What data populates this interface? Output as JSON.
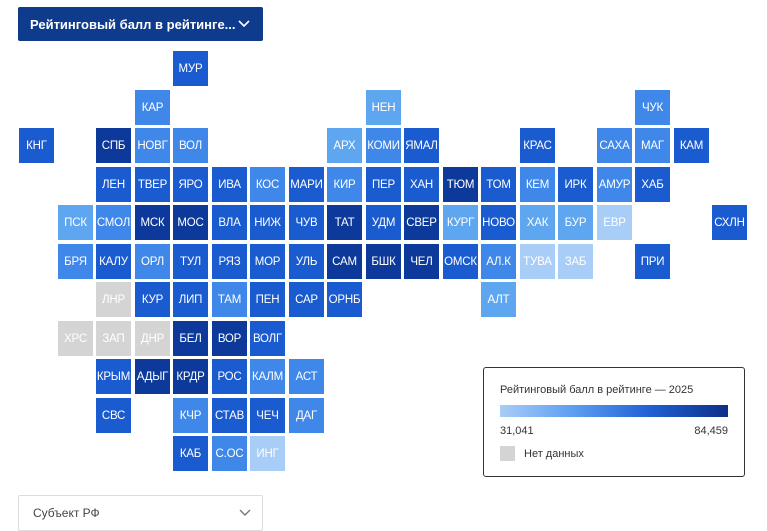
{
  "indicator_select": {
    "label": "Рейтинговый балл в рейтинге..."
  },
  "legend": {
    "title": "Рейтинговый балл в рейтинге — 2025",
    "min": "31,041",
    "max": "84,459",
    "no_data": "Нет данных",
    "colors": {
      "low": "#a9cdf7",
      "high": "#0d2f86",
      "no_data": "#d4d4d4"
    }
  },
  "subject_select": {
    "placeholder": "Субъект РФ"
  },
  "palette": {
    "nd": "#d4d4d4",
    "vl": "#a8cdf6",
    "l": "#5fa6f1",
    "m": "#3f88ea",
    "d": "#1b5bd0",
    "vd": "#0d3a9a"
  },
  "regions": [
    {
      "code": "МУР",
      "row": 0,
      "col": 4,
      "shade": "d"
    },
    {
      "code": "КАР",
      "row": 1,
      "col": 3,
      "shade": "m"
    },
    {
      "code": "НЕН",
      "row": 1,
      "col": 9,
      "shade": "l"
    },
    {
      "code": "ЧУК",
      "row": 1,
      "col": 16,
      "shade": "m"
    },
    {
      "code": "КНГ",
      "row": 2,
      "col": 0,
      "shade": "d"
    },
    {
      "code": "СПБ",
      "row": 2,
      "col": 2,
      "shade": "vd"
    },
    {
      "code": "НОВГ",
      "row": 2,
      "col": 3,
      "shade": "m"
    },
    {
      "code": "ВОЛ",
      "row": 2,
      "col": 4,
      "shade": "m"
    },
    {
      "code": "АРХ",
      "row": 2,
      "col": 8,
      "shade": "l"
    },
    {
      "code": "КОМИ",
      "row": 2,
      "col": 9,
      "shade": "m"
    },
    {
      "code": "ЯМАЛ",
      "row": 2,
      "col": 10,
      "shade": "d"
    },
    {
      "code": "КРАС",
      "row": 2,
      "col": 13,
      "shade": "d"
    },
    {
      "code": "САХА",
      "row": 2,
      "col": 15,
      "shade": "m"
    },
    {
      "code": "МАГ",
      "row": 2,
      "col": 16,
      "shade": "m"
    },
    {
      "code": "КАМ",
      "row": 2,
      "col": 17,
      "shade": "d"
    },
    {
      "code": "ЛЕН",
      "row": 3,
      "col": 2,
      "shade": "d"
    },
    {
      "code": "ТВЕР",
      "row": 3,
      "col": 3,
      "shade": "d"
    },
    {
      "code": "ЯРО",
      "row": 3,
      "col": 4,
      "shade": "d"
    },
    {
      "code": "ИВА",
      "row": 3,
      "col": 5,
      "shade": "d"
    },
    {
      "code": "КОС",
      "row": 3,
      "col": 6,
      "shade": "m"
    },
    {
      "code": "МАРИ",
      "row": 3,
      "col": 7,
      "shade": "d"
    },
    {
      "code": "КИР",
      "row": 3,
      "col": 8,
      "shade": "m"
    },
    {
      "code": "ПЕР",
      "row": 3,
      "col": 9,
      "shade": "d"
    },
    {
      "code": "ХАН",
      "row": 3,
      "col": 10,
      "shade": "d"
    },
    {
      "code": "ТЮМ",
      "row": 3,
      "col": 11,
      "shade": "vd"
    },
    {
      "code": "ТОМ",
      "row": 3,
      "col": 12,
      "shade": "d"
    },
    {
      "code": "КЕМ",
      "row": 3,
      "col": 13,
      "shade": "m"
    },
    {
      "code": "ИРК",
      "row": 3,
      "col": 14,
      "shade": "d"
    },
    {
      "code": "АМУР",
      "row": 3,
      "col": 15,
      "shade": "m"
    },
    {
      "code": "ХАБ",
      "row": 3,
      "col": 16,
      "shade": "d"
    },
    {
      "code": "ПСК",
      "row": 4,
      "col": 1,
      "shade": "l"
    },
    {
      "code": "СМОЛ",
      "row": 4,
      "col": 2,
      "shade": "m"
    },
    {
      "code": "МСК",
      "row": 4,
      "col": 3,
      "shade": "vd"
    },
    {
      "code": "МОС",
      "row": 4,
      "col": 4,
      "shade": "vd"
    },
    {
      "code": "ВЛА",
      "row": 4,
      "col": 5,
      "shade": "d"
    },
    {
      "code": "НИЖ",
      "row": 4,
      "col": 6,
      "shade": "d"
    },
    {
      "code": "ЧУВ",
      "row": 4,
      "col": 7,
      "shade": "d"
    },
    {
      "code": "ТАТ",
      "row": 4,
      "col": 8,
      "shade": "vd"
    },
    {
      "code": "УДМ",
      "row": 4,
      "col": 9,
      "shade": "d"
    },
    {
      "code": "СВЕР",
      "row": 4,
      "col": 10,
      "shade": "vd"
    },
    {
      "code": "КУРГ",
      "row": 4,
      "col": 11,
      "shade": "l"
    },
    {
      "code": "НОВО",
      "row": 4,
      "col": 12,
      "shade": "d"
    },
    {
      "code": "ХАК",
      "row": 4,
      "col": 13,
      "shade": "l"
    },
    {
      "code": "БУР",
      "row": 4,
      "col": 14,
      "shade": "l"
    },
    {
      "code": "ЕВР",
      "row": 4,
      "col": 15,
      "shade": "vl"
    },
    {
      "code": "СХЛН",
      "row": 4,
      "col": 18,
      "shade": "d"
    },
    {
      "code": "БРЯ",
      "row": 5,
      "col": 1,
      "shade": "m"
    },
    {
      "code": "КАЛУ",
      "row": 5,
      "col": 2,
      "shade": "d"
    },
    {
      "code": "ОРЛ",
      "row": 5,
      "col": 3,
      "shade": "m"
    },
    {
      "code": "ТУЛ",
      "row": 5,
      "col": 4,
      "shade": "d"
    },
    {
      "code": "РЯЗ",
      "row": 5,
      "col": 5,
      "shade": "d"
    },
    {
      "code": "МОР",
      "row": 5,
      "col": 6,
      "shade": "d"
    },
    {
      "code": "УЛЬ",
      "row": 5,
      "col": 7,
      "shade": "d"
    },
    {
      "code": "САМ",
      "row": 5,
      "col": 8,
      "shade": "vd"
    },
    {
      "code": "БШК",
      "row": 5,
      "col": 9,
      "shade": "vd"
    },
    {
      "code": "ЧЕЛ",
      "row": 5,
      "col": 10,
      "shade": "vd"
    },
    {
      "code": "ОМСК",
      "row": 5,
      "col": 11,
      "shade": "d"
    },
    {
      "code": "АЛ.К",
      "row": 5,
      "col": 12,
      "shade": "m"
    },
    {
      "code": "ТУВА",
      "row": 5,
      "col": 13,
      "shade": "vl"
    },
    {
      "code": "ЗАБ",
      "row": 5,
      "col": 14,
      "shade": "vl"
    },
    {
      "code": "ПРИ",
      "row": 5,
      "col": 16,
      "shade": "d"
    },
    {
      "code": "ЛНР",
      "row": 6,
      "col": 2,
      "shade": "nd"
    },
    {
      "code": "КУР",
      "row": 6,
      "col": 3,
      "shade": "d"
    },
    {
      "code": "ЛИП",
      "row": 6,
      "col": 4,
      "shade": "d"
    },
    {
      "code": "ТАМ",
      "row": 6,
      "col": 5,
      "shade": "m"
    },
    {
      "code": "ПЕН",
      "row": 6,
      "col": 6,
      "shade": "d"
    },
    {
      "code": "САР",
      "row": 6,
      "col": 7,
      "shade": "d"
    },
    {
      "code": "ОРНБ",
      "row": 6,
      "col": 8,
      "shade": "d"
    },
    {
      "code": "АЛТ",
      "row": 6,
      "col": 12,
      "shade": "l"
    },
    {
      "code": "ХРС",
      "row": 7,
      "col": 1,
      "shade": "nd"
    },
    {
      "code": "ЗАП",
      "row": 7,
      "col": 2,
      "shade": "nd"
    },
    {
      "code": "ДНР",
      "row": 7,
      "col": 3,
      "shade": "nd"
    },
    {
      "code": "БЕЛ",
      "row": 7,
      "col": 4,
      "shade": "vd"
    },
    {
      "code": "ВОР",
      "row": 7,
      "col": 5,
      "shade": "vd"
    },
    {
      "code": "ВОЛГ",
      "row": 7,
      "col": 6,
      "shade": "d"
    },
    {
      "code": "КРЫМ",
      "row": 8,
      "col": 2,
      "shade": "d"
    },
    {
      "code": "АДЫГ",
      "row": 8,
      "col": 3,
      "shade": "vd"
    },
    {
      "code": "КРДР",
      "row": 8,
      "col": 4,
      "shade": "vd"
    },
    {
      "code": "РОС",
      "row": 8,
      "col": 5,
      "shade": "d"
    },
    {
      "code": "КАЛМ",
      "row": 8,
      "col": 6,
      "shade": "m"
    },
    {
      "code": "АСТ",
      "row": 8,
      "col": 7,
      "shade": "m"
    },
    {
      "code": "СВС",
      "row": 9,
      "col": 2,
      "shade": "d"
    },
    {
      "code": "КЧР",
      "row": 9,
      "col": 4,
      "shade": "m"
    },
    {
      "code": "СТАВ",
      "row": 9,
      "col": 5,
      "shade": "d"
    },
    {
      "code": "ЧЕЧ",
      "row": 9,
      "col": 6,
      "shade": "d"
    },
    {
      "code": "ДАГ",
      "row": 9,
      "col": 7,
      "shade": "m"
    },
    {
      "code": "КАБ",
      "row": 10,
      "col": 4,
      "shade": "d"
    },
    {
      "code": "С.ОС",
      "row": 10,
      "col": 5,
      "shade": "m"
    },
    {
      "code": "ИНГ",
      "row": 10,
      "col": 6,
      "shade": "vl"
    }
  ]
}
